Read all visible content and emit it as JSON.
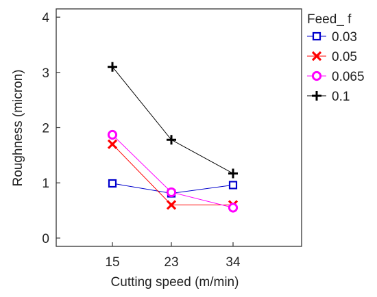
{
  "chart_data": {
    "type": "line",
    "xlabel": "Cutting speed (m/min)",
    "ylabel": "Roughness (micron)",
    "categories": [
      "15",
      "23",
      "34"
    ],
    "ylim": [
      -0.15,
      4.15
    ],
    "yticks": [
      0,
      1,
      2,
      3,
      4
    ],
    "legend_title": "Feed_ f",
    "legend_position": "right",
    "grid": false,
    "series": [
      {
        "name": "0.03",
        "values": [
          0.99,
          0.81,
          0.96
        ],
        "color": "#0000cc",
        "marker": "square"
      },
      {
        "name": "0.05",
        "values": [
          1.7,
          0.6,
          0.6
        ],
        "color": "#ff0000",
        "marker": "x"
      },
      {
        "name": "0.065",
        "values": [
          1.87,
          0.83,
          0.55
        ],
        "color": "#ff00ff",
        "marker": "circle"
      },
      {
        "name": "0.1",
        "values": [
          3.1,
          1.78,
          1.17
        ],
        "color": "#000000",
        "marker": "plus"
      }
    ]
  }
}
